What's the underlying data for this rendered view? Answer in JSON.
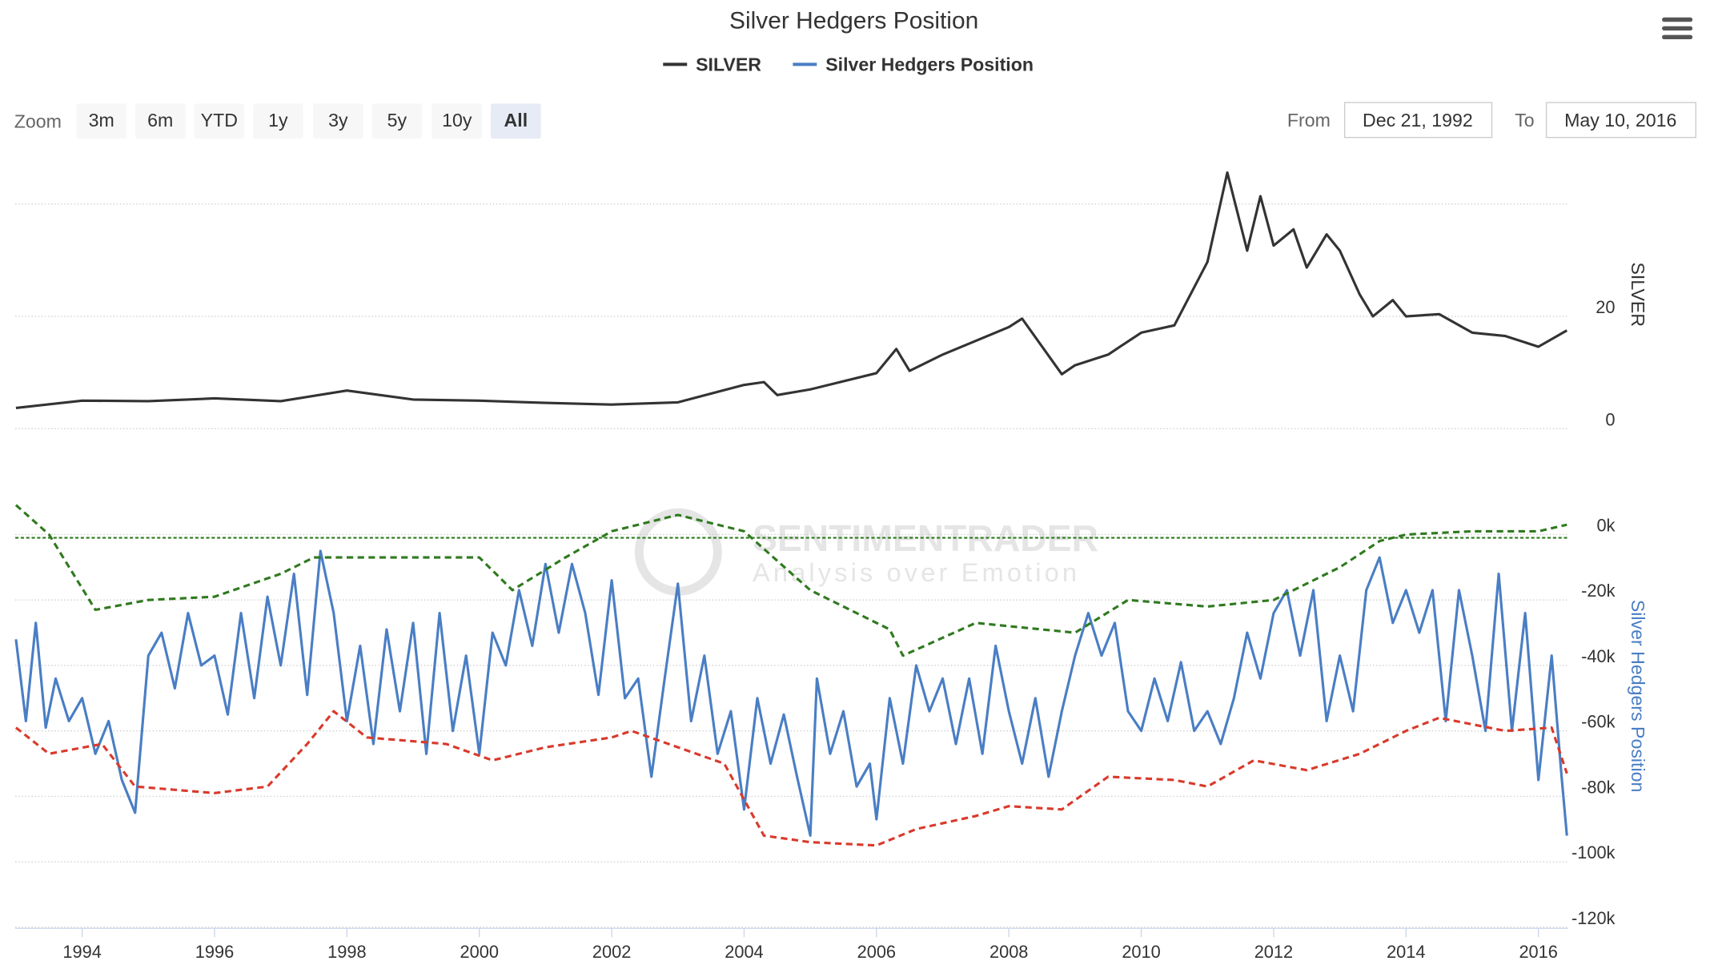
{
  "zoom": {
    "label": "Zoom",
    "buttons": [
      "3m",
      "6m",
      "YTD",
      "1y",
      "3y",
      "5y",
      "10y",
      "All"
    ],
    "selected": 7
  },
  "range": {
    "from_label": "From",
    "from": "Dec 21, 1992",
    "to_label": "To",
    "to": "May 10, 2016"
  },
  "watermark": {
    "name": "SENTIMENTRADER",
    "tagline": "Analysis over Emotion"
  },
  "chart_data": [
    {
      "type": "line",
      "title": "Silver Hedgers Position",
      "ylabel": "SILVER",
      "xlim": [
        1992.99,
        2016.45
      ],
      "ylim": [
        0,
        47
      ],
      "yticks": [
        0,
        20
      ],
      "ygrid": [
        0,
        20,
        40
      ],
      "series": [
        {
          "name": "SILVER",
          "color": "#333333",
          "x": [
            1993.0,
            1994.0,
            1995.0,
            1996.0,
            1997.0,
            1998.0,
            1999.0,
            2000.0,
            2001.0,
            2002.0,
            2003.0,
            2004.0,
            2004.3,
            2004.5,
            2005.0,
            2006.0,
            2006.3,
            2006.5,
            2007.0,
            2008.0,
            2008.2,
            2008.8,
            2009.0,
            2009.5,
            2010.0,
            2010.5,
            2011.0,
            2011.3,
            2011.6,
            2011.8,
            2012.0,
            2012.3,
            2012.5,
            2012.8,
            2013.0,
            2013.3,
            2013.5,
            2013.8,
            2014.0,
            2014.5,
            2015.0,
            2015.5,
            2016.0,
            2016.43
          ],
          "values": [
            3.7,
            5.0,
            4.9,
            5.4,
            4.9,
            6.8,
            5.2,
            5.0,
            4.6,
            4.3,
            4.7,
            7.8,
            8.3,
            6.0,
            7.0,
            9.9,
            14.2,
            10.3,
            13.2,
            18.1,
            19.6,
            9.7,
            11.3,
            13.2,
            17.1,
            18.4,
            29.7,
            45.6,
            31.7,
            41.4,
            32.6,
            35.5,
            28.7,
            34.6,
            31.7,
            23.9,
            20.0,
            22.9,
            20.0,
            20.4,
            17.1,
            16.5,
            14.6,
            17.5
          ]
        }
      ]
    },
    {
      "type": "line",
      "ylabel": "Silver Hedgers Position",
      "xlim": [
        1992.99,
        2016.45
      ],
      "xticks": [
        1994,
        1996,
        1998,
        2000,
        2002,
        2004,
        2006,
        2008,
        2010,
        2012,
        2014,
        2016
      ],
      "ylim": [
        -120000,
        10000
      ],
      "yticks": [
        {
          "value": 0,
          "label": "0k"
        },
        {
          "value": -20000,
          "label": "-20k"
        },
        {
          "value": -40000,
          "label": "-40k"
        },
        {
          "value": -60000,
          "label": "-60k"
        },
        {
          "value": -80000,
          "label": "-80k"
        },
        {
          "value": -100000,
          "label": "-100k"
        },
        {
          "value": -120000,
          "label": "-120k"
        }
      ],
      "reference_line": {
        "value": -1000,
        "color": "#2f7a1f"
      },
      "series": [
        {
          "name": "Silver Hedgers Position",
          "color": "#4a7ec4",
          "x": [
            1993.0,
            1993.15,
            1993.3,
            1993.45,
            1993.6,
            1993.8,
            1994.0,
            1994.2,
            1994.4,
            1994.6,
            1994.8,
            1995.0,
            1995.2,
            1995.4,
            1995.6,
            1995.8,
            1996.0,
            1996.2,
            1996.4,
            1996.6,
            1996.8,
            1997.0,
            1997.2,
            1997.4,
            1997.6,
            1997.8,
            1998.0,
            1998.2,
            1998.4,
            1998.6,
            1998.8,
            1999.0,
            1999.2,
            1999.4,
            1999.6,
            1999.8,
            2000.0,
            2000.2,
            2000.4,
            2000.6,
            2000.8,
            2001.0,
            2001.2,
            2001.4,
            2001.6,
            2001.8,
            2002.0,
            2002.2,
            2002.4,
            2002.6,
            2002.8,
            2003.0,
            2003.2,
            2003.4,
            2003.6,
            2003.8,
            2004.0,
            2004.2,
            2004.4,
            2004.6,
            2004.8,
            2005.0,
            2005.1,
            2005.3,
            2005.5,
            2005.7,
            2005.9,
            2006.0,
            2006.2,
            2006.4,
            2006.6,
            2006.8,
            2007.0,
            2007.2,
            2007.4,
            2007.6,
            2007.8,
            2008.0,
            2008.2,
            2008.4,
            2008.6,
            2008.8,
            2009.0,
            2009.2,
            2009.4,
            2009.6,
            2009.8,
            2010.0,
            2010.2,
            2010.4,
            2010.6,
            2010.8,
            2011.0,
            2011.2,
            2011.4,
            2011.6,
            2011.8,
            2012.0,
            2012.2,
            2012.4,
            2012.6,
            2012.8,
            2013.0,
            2013.2,
            2013.4,
            2013.6,
            2013.8,
            2014.0,
            2014.2,
            2014.4,
            2014.6,
            2014.8,
            2015.0,
            2015.2,
            2015.4,
            2015.6,
            2015.8,
            2016.0,
            2016.2,
            2016.35,
            2016.43
          ],
          "values": [
            -32000,
            -57000,
            -27000,
            -59000,
            -44000,
            -57000,
            -50000,
            -67000,
            -57000,
            -75000,
            -85000,
            -37000,
            -30000,
            -47000,
            -24000,
            -40000,
            -37000,
            -55000,
            -24000,
            -50000,
            -19000,
            -40000,
            -12000,
            -49000,
            -5000,
            -24000,
            -57000,
            -34000,
            -64000,
            -29000,
            -54000,
            -27000,
            -67000,
            -24000,
            -60000,
            -37000,
            -67000,
            -30000,
            -40000,
            -17000,
            -34000,
            -9000,
            -30000,
            -9000,
            -24000,
            -49000,
            -14000,
            -50000,
            -44000,
            -74000,
            -44000,
            -15000,
            -57000,
            -37000,
            -67000,
            -54000,
            -84000,
            -50000,
            -70000,
            -55000,
            -74000,
            -92000,
            -44000,
            -67000,
            -54000,
            -77000,
            -70000,
            -87000,
            -50000,
            -70000,
            -40000,
            -54000,
            -44000,
            -64000,
            -44000,
            -67000,
            -34000,
            -54000,
            -70000,
            -50000,
            -74000,
            -54000,
            -37000,
            -24000,
            -37000,
            -27000,
            -54000,
            -60000,
            -44000,
            -57000,
            -39000,
            -60000,
            -54000,
            -64000,
            -50000,
            -30000,
            -44000,
            -24000,
            -17000,
            -37000,
            -17000,
            -57000,
            -37000,
            -54000,
            -17000,
            -7000,
            -27000,
            -17000,
            -30000,
            -17000,
            -57000,
            -17000,
            -37000,
            -60000,
            -12000,
            -60000,
            -24000,
            -75000,
            -37000,
            -74000,
            -92000
          ]
        },
        {
          "color": "#2f7a1f",
          "dashed": true,
          "x": [
            1993.0,
            1993.5,
            1994.2,
            1995.0,
            1996.0,
            1997.0,
            1997.5,
            1998.5,
            2000.0,
            2000.5,
            2001.3,
            2002.0,
            2003.0,
            2004.0,
            2005.0,
            2006.2,
            2006.4,
            2007.5,
            2009.0,
            2009.8,
            2011.0,
            2012.0,
            2013.0,
            2013.6,
            2014.0,
            2015.0,
            2016.0,
            2016.43
          ],
          "values": [
            9000,
            0,
            -23000,
            -20000,
            -19000,
            -12000,
            -7000,
            -7000,
            -7000,
            -17000,
            -7000,
            1000,
            6000,
            1000,
            -17000,
            -29000,
            -37000,
            -27000,
            -30000,
            -20000,
            -22000,
            -20000,
            -10000,
            -2000,
            0,
            1000,
            1000,
            3000
          ]
        },
        {
          "color": "#d93a2b",
          "dashed": true,
          "x": [
            1993.0,
            1993.5,
            1994.3,
            1994.8,
            1996.0,
            1996.8,
            1997.4,
            1997.8,
            1998.3,
            1999.5,
            2000.2,
            2001.0,
            2002.0,
            2002.3,
            2003.0,
            2003.7,
            2004.3,
            2005.0,
            2006.0,
            2006.6,
            2007.5,
            2008.0,
            2008.8,
            2009.5,
            2010.5,
            2011.0,
            2011.7,
            2012.5,
            2013.3,
            2014.0,
            2014.5,
            2015.5,
            2016.2,
            2016.43
          ],
          "values": [
            -59000,
            -67000,
            -64000,
            -77000,
            -79000,
            -77000,
            -64000,
            -54000,
            -62000,
            -64000,
            -69000,
            -65000,
            -62000,
            -60000,
            -65000,
            -70000,
            -92000,
            -94000,
            -95000,
            -90000,
            -86000,
            -83000,
            -84000,
            -74000,
            -75000,
            -77000,
            -69000,
            -72000,
            -67000,
            -60000,
            -56000,
            -60000,
            -59000,
            -73000
          ]
        }
      ]
    }
  ]
}
